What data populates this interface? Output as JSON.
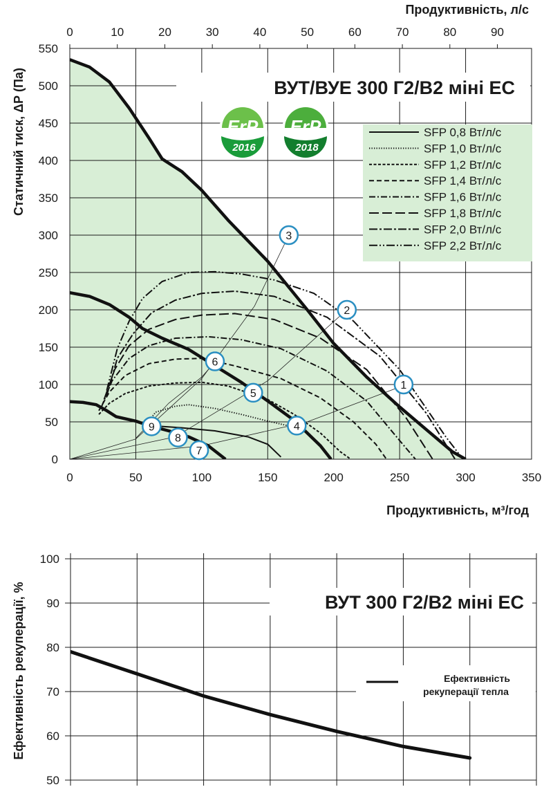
{
  "chart_data": [
    {
      "type": "line",
      "title": "ВУТ/ВУЕ 300 Г2/В2 міні ЕС",
      "xlabel": "Продуктивність, м³/год",
      "x2label": "Продуктивність, л/с",
      "ylabel": "Статичний тиск, ΔР (Па)",
      "xlim": [
        0,
        350
      ],
      "ylim": [
        0,
        550
      ],
      "x2lim": [
        0,
        97.2
      ],
      "x_ticks": [
        "0",
        "50",
        "100",
        "150",
        "200",
        "250",
        "300",
        "350"
      ],
      "y_ticks": [
        "0",
        "50",
        "100",
        "150",
        "200",
        "250",
        "300",
        "350",
        "400",
        "450",
        "500",
        "550"
      ],
      "x2_ticks": [
        "0",
        "10",
        "20",
        "30",
        "40",
        "50",
        "60",
        "70",
        "80",
        "90"
      ],
      "grid": true,
      "legend_position": "top-right",
      "badges": [
        {
          "text": "ErP",
          "year": "2016"
        },
        {
          "text": "ErP",
          "year": "2018"
        }
      ],
      "colors": {
        "fill": "#d8eed6",
        "curve": "#111111",
        "badge": "#1a9c3a",
        "marker_ring": "#2b8fc2"
      },
      "fan_curves": [
        {
          "name": "fan-curve-max",
          "points": [
            [
              0,
              535
            ],
            [
              15,
              525
            ],
            [
              30,
              505
            ],
            [
              45,
              470
            ],
            [
              60,
              430
            ],
            [
              70,
              402
            ],
            [
              85,
              385
            ],
            [
              100,
              360
            ],
            [
              120,
              320
            ],
            [
              150,
              265
            ],
            [
              180,
              200
            ],
            [
              200,
              155
            ],
            [
              225,
              110
            ],
            [
              250,
              70
            ],
            [
              270,
              40
            ],
            [
              290,
              10
            ],
            [
              300,
              0
            ]
          ]
        },
        {
          "name": "fan-curve-mid",
          "points": [
            [
              0,
              223
            ],
            [
              15,
              218
            ],
            [
              30,
              207
            ],
            [
              45,
              190
            ],
            [
              55,
              175
            ],
            [
              70,
              162
            ],
            [
              90,
              147
            ],
            [
              110,
              125
            ],
            [
              130,
              103
            ],
            [
              150,
              78
            ],
            [
              170,
              52
            ],
            [
              190,
              18
            ],
            [
              198,
              0
            ]
          ]
        },
        {
          "name": "fan-curve-min",
          "points": [
            [
              0,
              77
            ],
            [
              10,
              76
            ],
            [
              20,
              73
            ],
            [
              28,
              65
            ],
            [
              35,
              57
            ],
            [
              50,
              51
            ],
            [
              60,
              45
            ],
            [
              75,
              38
            ],
            [
              90,
              30
            ],
            [
              105,
              18
            ],
            [
              118,
              0
            ]
          ]
        }
      ],
      "series": [
        {
          "name": "SFP 0,8 Вт/л/с",
          "dash": "solid",
          "values": [
            [
              60,
              45
            ],
            [
              85,
              42
            ],
            [
              110,
              38
            ],
            [
              135,
              30
            ],
            [
              150,
              20
            ],
            [
              160,
              3
            ]
          ]
        },
        {
          "name": "SFP 1,0 Вт/л/с",
          "dash": "1.3,2.2",
          "values": [
            [
              55,
              40
            ],
            [
              65,
              63
            ],
            [
              80,
              71
            ],
            [
              90,
              73
            ],
            [
              110,
              68
            ],
            [
              130,
              60
            ],
            [
              150,
              51
            ],
            [
              165,
              45
            ]
          ]
        },
        {
          "name": "SFP 1,2 Вт/л/с",
          "dash": "4,2.5",
          "values": [
            [
              22,
              60
            ],
            [
              30,
              75
            ],
            [
              42,
              88
            ],
            [
              60,
              98
            ],
            [
              80,
              102
            ],
            [
              100,
              103
            ],
            [
              120,
              98
            ],
            [
              150,
              80
            ],
            [
              170,
              60
            ],
            [
              190,
              35
            ],
            [
              205,
              10
            ],
            [
              213,
              0
            ]
          ]
        },
        {
          "name": "SFP 1,4 Вт/л/с",
          "dash": "7,4",
          "values": [
            [
              22,
              65
            ],
            [
              30,
              90
            ],
            [
              42,
              112
            ],
            [
              60,
              128
            ],
            [
              80,
              134
            ],
            [
              100,
              135
            ],
            [
              125,
              125
            ],
            [
              160,
              108
            ],
            [
              190,
              82
            ],
            [
              215,
              50
            ],
            [
              232,
              20
            ],
            [
              240,
              0
            ]
          ]
        },
        {
          "name": "SFP 1,6 Вт/л/с",
          "dash": "9,3,2,3",
          "values": [
            [
              24,
              70
            ],
            [
              32,
              105
            ],
            [
              45,
              135
            ],
            [
              60,
              152
            ],
            [
              80,
              162
            ],
            [
              105,
              164
            ],
            [
              130,
              160
            ],
            [
              160,
              148
            ],
            [
              195,
              118
            ],
            [
              225,
              78
            ],
            [
              250,
              25
            ],
            [
              262,
              0
            ]
          ]
        },
        {
          "name": "SFP 1,8 Вт/л/с",
          "dash": "14,5",
          "values": [
            [
              26,
              80
            ],
            [
              34,
              120
            ],
            [
              45,
              152
            ],
            [
              60,
              174
            ],
            [
              80,
              187
            ],
            [
              100,
              193
            ],
            [
              125,
              195
            ],
            [
              155,
              187
            ],
            [
              190,
              162
            ],
            [
              225,
              120
            ],
            [
              255,
              55
            ],
            [
              275,
              0
            ]
          ]
        },
        {
          "name": "SFP 2,0 Вт/л/с",
          "dash": "12,3,3,3",
          "values": [
            [
              28,
              85
            ],
            [
              36,
              135
            ],
            [
              48,
              168
            ],
            [
              62,
              196
            ],
            [
              80,
              213
            ],
            [
              100,
              222
            ],
            [
              125,
              225
            ],
            [
              155,
              218
            ],
            [
              195,
              190
            ],
            [
              235,
              138
            ],
            [
              270,
              62
            ],
            [
              292,
              0
            ]
          ]
        },
        {
          "name": "SFP 2,2 Вт/л/с",
          "dash": "12,3,2,3,2,3",
          "values": [
            [
              28,
              92
            ],
            [
              36,
              148
            ],
            [
              45,
              185
            ],
            [
              55,
              215
            ],
            [
              70,
              238
            ],
            [
              90,
              250
            ],
            [
              110,
              251
            ],
            [
              130,
              248
            ],
            [
              155,
              240
            ],
            [
              185,
              222
            ],
            [
              215,
              185
            ],
            [
              250,
              120
            ],
            [
              285,
              30
            ],
            [
              298,
              0
            ]
          ]
        }
      ],
      "operating_lines": [
        {
          "name": "line-3",
          "points": [
            [
              0,
              0
            ],
            [
              50,
              27
            ],
            [
              100,
              108
            ],
            [
              140,
              205
            ],
            [
              166,
              300
            ]
          ]
        },
        {
          "name": "line-2",
          "points": [
            [
              0,
              0
            ],
            [
              80,
              30
            ],
            [
              150,
              105
            ],
            [
              210,
              200
            ]
          ]
        },
        {
          "name": "line-1",
          "points": [
            [
              0,
              0
            ],
            [
              100,
              18
            ],
            [
              180,
              50
            ],
            [
              255,
              100
            ]
          ]
        },
        {
          "name": "line-6",
          "points": [
            [
              50,
              28
            ],
            [
              75,
              75
            ],
            [
              100,
              110
            ],
            [
              110,
              130
            ]
          ]
        }
      ],
      "points": [
        {
          "label": "1",
          "x": 253,
          "y": 100
        },
        {
          "label": "2",
          "x": 210,
          "y": 200
        },
        {
          "label": "3",
          "x": 166,
          "y": 300
        },
        {
          "label": "4",
          "x": 172,
          "y": 45
        },
        {
          "label": "5",
          "x": 139,
          "y": 89
        },
        {
          "label": "6",
          "x": 110,
          "y": 131
        },
        {
          "label": "7",
          "x": 98,
          "y": 12
        },
        {
          "label": "8",
          "x": 82,
          "y": 29
        },
        {
          "label": "9",
          "x": 62,
          "y": 44
        }
      ]
    },
    {
      "type": "line",
      "title": "ВУТ 300 Г2/В2 міні ЕС",
      "xlabel": "",
      "ylabel": "Ефективність рекуперації, %",
      "xlim": [
        0,
        350
      ],
      "ylim": [
        50,
        100
      ],
      "y_ticks": [
        "50",
        "60",
        "70",
        "80",
        "90",
        "100"
      ],
      "grid": true,
      "legend_position": "right",
      "series": [
        {
          "name": "Ефективність рекуперації тепла",
          "legend_lines": [
            "Ефективність",
            "рекуперації тепла"
          ],
          "values": [
            [
              0,
              79
            ],
            [
              50,
              74
            ],
            [
              100,
              69
            ],
            [
              150,
              64.8
            ],
            [
              200,
              61
            ],
            [
              250,
              57.6
            ],
            [
              300,
              55
            ]
          ]
        }
      ]
    }
  ]
}
